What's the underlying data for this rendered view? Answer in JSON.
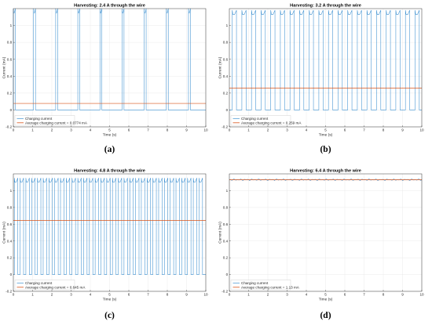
{
  "figure": {
    "colors": {
      "charging": "#3b8fd0",
      "average": "#d95319",
      "grid": "#e6e6e6",
      "axis": "#262626"
    }
  },
  "chart_data": [
    {
      "type": "line",
      "panel": "(a)",
      "title": "Harvesting: 2.4 A through the wire",
      "xlabel": "Time (s)",
      "ylabel": "Current (mA)",
      "xlim": [
        0,
        10
      ],
      "ylim": [
        -0.2,
        1.2
      ],
      "xticks": [
        "0",
        "1",
        "2",
        "3",
        "4",
        "5",
        "6",
        "7",
        "8",
        "9",
        "10"
      ],
      "yticks": [
        "-0.2",
        "0",
        "0.2",
        "0.4",
        "0.6",
        "0.8",
        "1"
      ],
      "grid": true,
      "legend_position": "bottom-left",
      "pulse_peak_mA": 1.2,
      "pulse_width_s": 0.1,
      "pulse_starts_s": [
        0.0,
        1.05,
        2.2,
        3.35,
        4.5,
        5.65,
        6.8,
        7.95,
        9.1
      ],
      "series": [
        {
          "name": "Charging current",
          "kind": "pulses"
        },
        {
          "name": "Average charging current = 0.0774 mA",
          "kind": "average",
          "value": 0.0774
        }
      ]
    },
    {
      "type": "line",
      "panel": "(b)",
      "title": "Harvesting: 3.2 A through the wire",
      "xlabel": "Time (s)",
      "ylabel": "Current (mA)",
      "xlim": [
        0,
        10
      ],
      "ylim": [
        -0.2,
        1.2
      ],
      "xticks": [
        "0",
        "1",
        "2",
        "3",
        "4",
        "5",
        "6",
        "7",
        "8",
        "9",
        "10"
      ],
      "yticks": [
        "-0.2",
        "0",
        "0.2",
        "0.4",
        "0.6",
        "0.8",
        "1"
      ],
      "grid": true,
      "legend_position": "bottom-left",
      "pulse_peak_mA": 1.18,
      "pulse_width_s": 0.22,
      "pulse_starts_s": [
        0.15,
        0.65,
        1.15,
        1.65,
        2.15,
        2.65,
        3.15,
        3.65,
        4.15,
        4.65,
        5.15,
        5.65,
        6.15,
        6.65,
        7.15,
        7.65,
        8.15,
        8.65,
        9.15,
        9.65
      ],
      "series": [
        {
          "name": "Charging current",
          "kind": "pulses"
        },
        {
          "name": "Average charging current = 0.259 mA",
          "kind": "average",
          "value": 0.259
        }
      ]
    },
    {
      "type": "line",
      "panel": "(c)",
      "title": "Harvesting: 4.8 A through the wire",
      "xlabel": "Time (s)",
      "ylabel": "Current (mA)",
      "xlim": [
        0,
        10
      ],
      "ylim": [
        -0.2,
        1.2
      ],
      "xticks": [
        "0",
        "1",
        "2",
        "3",
        "4",
        "5",
        "6",
        "7",
        "8",
        "9",
        "10"
      ],
      "yticks": [
        "-0.2",
        "0",
        "0.2",
        "0.4",
        "0.6",
        "0.8",
        "1"
      ],
      "grid": true,
      "legend_position": "bottom-left",
      "pulse_peak_mA": 1.15,
      "pulse_width_s": 0.18,
      "pulse_starts_s": [
        0.05,
        0.35,
        0.65,
        0.95,
        1.25,
        1.55,
        1.85,
        2.15,
        2.45,
        2.75,
        3.05,
        3.35,
        3.65,
        3.95,
        4.25,
        4.55,
        4.85,
        5.15,
        5.45,
        5.75,
        6.05,
        6.35,
        6.65,
        6.95,
        7.25,
        7.55,
        7.85,
        8.15,
        8.45,
        8.75,
        9.05,
        9.35,
        9.65
      ],
      "series": [
        {
          "name": "Charging current",
          "kind": "pulses"
        },
        {
          "name": "Average charging current = 0.645 mA",
          "kind": "average",
          "value": 0.645
        }
      ]
    },
    {
      "type": "line",
      "panel": "(d)",
      "title": "Harvesting: 6.4 A through the wire",
      "xlabel": "Time (s)",
      "ylabel": "Current (mA)",
      "xlim": [
        0,
        10
      ],
      "ylim": [
        -0.2,
        1.2
      ],
      "xticks": [
        "0",
        "1",
        "2",
        "3",
        "4",
        "5",
        "6",
        "7",
        "8",
        "9",
        "10"
      ],
      "yticks": [
        "-0.2",
        "0",
        "0.2",
        "0.4",
        "0.6",
        "0.8",
        "1"
      ],
      "grid": true,
      "legend_position": "bottom-left",
      "steady_level_mA": 1.13,
      "series": [
        {
          "name": "Charging current",
          "kind": "steady"
        },
        {
          "name": "Average charging current = 1.13 mA",
          "kind": "average",
          "value": 1.13
        }
      ]
    }
  ]
}
